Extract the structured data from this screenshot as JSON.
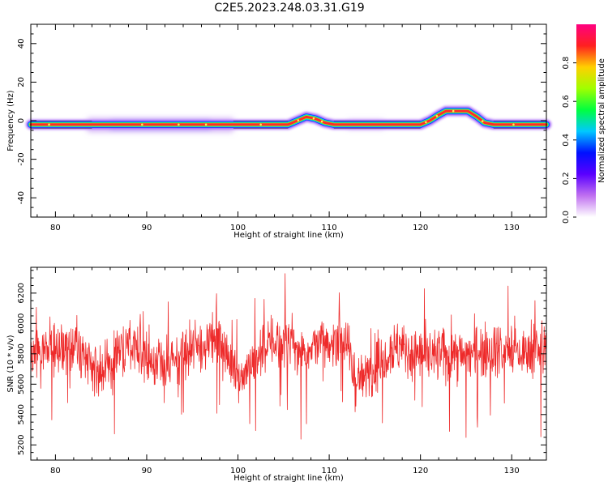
{
  "figure": {
    "title": "C2E5.2023.248.03.31.G19"
  },
  "chart_data": [
    {
      "type": "heatmap",
      "xlabel": "Height of straight line (km)",
      "ylabel": "Frequency (Hz)",
      "xlim": [
        77.3,
        133.8
      ],
      "ylim": [
        -50,
        50
      ],
      "xticks": [
        80,
        90,
        100,
        110,
        120,
        130
      ],
      "yticks": [
        40,
        20,
        0,
        -20,
        -40
      ],
      "colorbar": {
        "label": "Normalized spectral amplitude",
        "range": [
          0,
          1
        ],
        "ticks": [
          0.0,
          0.2,
          0.4,
          0.6,
          0.8
        ],
        "colormap": [
          "#ffffff",
          "#c070f0",
          "#5a00ff",
          "#0010ff",
          "#00c8ff",
          "#00ff40",
          "#a0ff00",
          "#ffd000",
          "#ff2020",
          "#ff0080"
        ]
      },
      "ridge": [
        [
          77.3,
          -2
        ],
        [
          84,
          -2
        ],
        [
          88,
          -2
        ],
        [
          92,
          -2
        ],
        [
          96,
          -2
        ],
        [
          100,
          -2
        ],
        [
          104,
          -2
        ],
        [
          105.5,
          -2
        ],
        [
          106.5,
          0
        ],
        [
          107.5,
          2
        ],
        [
          108.5,
          1
        ],
        [
          109.5,
          -1
        ],
        [
          110.5,
          -2
        ],
        [
          114,
          -2
        ],
        [
          118,
          -2
        ],
        [
          120,
          -2
        ],
        [
          121,
          0
        ],
        [
          122,
          3
        ],
        [
          122.8,
          5
        ],
        [
          125.2,
          5
        ],
        [
          126.2,
          2
        ],
        [
          127,
          -1
        ],
        [
          128,
          -2
        ],
        [
          133.8,
          -2
        ]
      ],
      "ridge_note": "Strongest amplitude (~0.8-1.0) along a narrow band near 0 Hz with bumps near 108 km and 122-126 km; weaker halo (~0.1-0.3) 84-99 km."
    },
    {
      "type": "line",
      "xlabel": "Height of straight line (km)",
      "ylabel": "SNR (10 * v/v)",
      "xlim": [
        77.3,
        133.8
      ],
      "ylim": [
        5100,
        6370
      ],
      "xticks": [
        80,
        90,
        100,
        110,
        120,
        130
      ],
      "yticks": [
        6200,
        6000,
        5800,
        5600,
        5400,
        5200
      ],
      "series": [
        {
          "color": "#ee2a2a",
          "envelope_x": [
            77.3,
            80,
            82,
            84,
            85,
            87,
            88,
            90,
            92,
            94,
            96,
            97,
            98,
            100,
            101,
            103,
            105,
            107,
            109,
            110,
            111,
            112,
            113,
            115,
            117,
            119,
            121,
            123,
            125,
            127,
            129,
            131,
            133.8
          ],
          "envelope_mean": [
            5800,
            5830,
            5850,
            5720,
            5650,
            5800,
            5870,
            5780,
            5700,
            5780,
            5850,
            5900,
            5880,
            5650,
            5700,
            5850,
            5900,
            5820,
            5880,
            5800,
            5970,
            5850,
            5600,
            5720,
            5850,
            5810,
            5780,
            5800,
            5790,
            5840,
            5830,
            5800,
            5820
          ],
          "noise_amplitude": 150,
          "samples": 1400
        }
      ]
    }
  ]
}
